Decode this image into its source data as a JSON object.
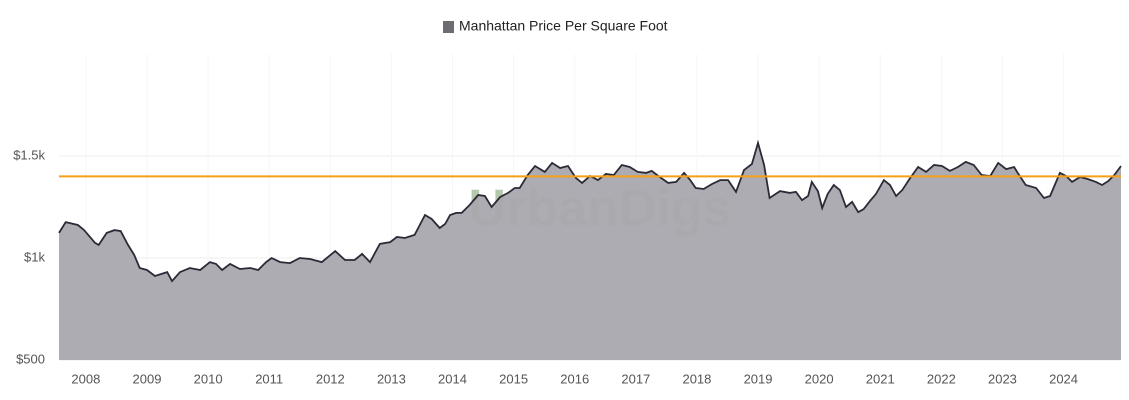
{
  "chart_data": {
    "type": "area",
    "legend": "Manhattan Price Per Square Foot",
    "watermark": "UrbanDigs",
    "series": [
      {
        "name": "Manhattan Price Per Square Foot",
        "color": "#a9a8ae",
        "line_color": "#2b2a36",
        "x": [
          2007.56,
          2007.67,
          2007.87,
          2007.97,
          2008.15,
          2008.21,
          2008.34,
          2008.47,
          2008.57,
          2008.69,
          2008.79,
          2008.88,
          2009.0,
          2009.13,
          2009.33,
          2009.41,
          2009.54,
          2009.7,
          2009.87,
          2010.03,
          2010.13,
          2010.23,
          2010.36,
          2010.52,
          2010.69,
          2010.82,
          2010.95,
          2011.04,
          2011.18,
          2011.34,
          2011.5,
          2011.67,
          2011.86,
          2012.08,
          2012.24,
          2012.4,
          2012.52,
          2012.65,
          2012.81,
          2012.98,
          2013.09,
          2013.22,
          2013.38,
          2013.55,
          2013.66,
          2013.79,
          2013.88,
          2013.96,
          2014.06,
          2014.15,
          2014.28,
          2014.42,
          2014.53,
          2014.64,
          2014.78,
          2014.91,
          2015.02,
          2015.1,
          2015.23,
          2015.35,
          2015.51,
          2015.63,
          2015.76,
          2015.89,
          2016.02,
          2016.12,
          2016.25,
          2016.38,
          2016.51,
          2016.64,
          2016.77,
          2016.9,
          2017.03,
          2017.17,
          2017.26,
          2017.39,
          2017.53,
          2017.66,
          2017.79,
          2017.89,
          2017.98,
          2018.11,
          2018.25,
          2018.38,
          2018.51,
          2018.64,
          2018.77,
          2018.9,
          2019.0,
          2019.1,
          2019.19,
          2019.36,
          2019.52,
          2019.62,
          2019.72,
          2019.82,
          2019.88,
          2019.98,
          2020.05,
          2020.14,
          2020.24,
          2020.34,
          2020.44,
          2020.54,
          2020.64,
          2020.73,
          2020.83,
          2020.93,
          2021.06,
          2021.16,
          2021.26,
          2021.36,
          2021.49,
          2021.62,
          2021.75,
          2021.88,
          2022.01,
          2022.14,
          2022.27,
          2022.4,
          2022.53,
          2022.66,
          2022.8,
          2022.93,
          2023.06,
          2023.19,
          2023.25,
          2023.38,
          2023.55,
          2023.68,
          2023.78,
          2023.94,
          2024.04,
          2024.14,
          2024.27,
          2024.4,
          2024.53,
          2024.63,
          2024.73,
          2024.83,
          2024.94
        ],
        "values": [
          1123,
          1176,
          1162,
          1137,
          1074,
          1064,
          1123,
          1137,
          1132,
          1064,
          1015,
          951,
          941,
          912,
          931,
          887,
          931,
          951,
          941,
          980,
          971,
          941,
          971,
          946,
          951,
          941,
          980,
          1000,
          980,
          975,
          1000,
          995,
          980,
          1034,
          990,
          990,
          1020,
          980,
          1069,
          1078,
          1103,
          1098,
          1113,
          1211,
          1191,
          1147,
          1167,
          1211,
          1221,
          1221,
          1260,
          1309,
          1304,
          1250,
          1299,
          1319,
          1343,
          1343,
          1407,
          1451,
          1422,
          1466,
          1441,
          1451,
          1392,
          1368,
          1402,
          1382,
          1412,
          1407,
          1456,
          1446,
          1422,
          1417,
          1427,
          1397,
          1368,
          1373,
          1417,
          1382,
          1343,
          1338,
          1363,
          1382,
          1382,
          1324,
          1431,
          1461,
          1564,
          1456,
          1294,
          1328,
          1319,
          1324,
          1284,
          1304,
          1373,
          1328,
          1245,
          1314,
          1358,
          1333,
          1250,
          1275,
          1225,
          1240,
          1279,
          1314,
          1382,
          1358,
          1304,
          1333,
          1392,
          1446,
          1422,
          1456,
          1451,
          1427,
          1446,
          1471,
          1456,
          1407,
          1402,
          1466,
          1436,
          1446,
          1417,
          1358,
          1343,
          1294,
          1304,
          1417,
          1402,
          1373,
          1397,
          1387,
          1373,
          1358,
          1377,
          1407,
          1451
        ]
      }
    ],
    "reference_line": {
      "value": 1400,
      "color": "#f5a01a"
    },
    "xlim": [
      2007.56,
      2024.94
    ],
    "xticks": [
      2008,
      2009,
      2010,
      2011,
      2012,
      2013,
      2014,
      2015,
      2016,
      2017,
      2018,
      2019,
      2020,
      2021,
      2022,
      2023,
      2024
    ],
    "ylim": [
      500,
      2000
    ],
    "yticks": [
      {
        "value": 500,
        "label": "$500"
      },
      {
        "value": 1000,
        "label": "$1k"
      },
      {
        "value": 1500,
        "label": "$1.5k"
      }
    ],
    "grid": true
  }
}
